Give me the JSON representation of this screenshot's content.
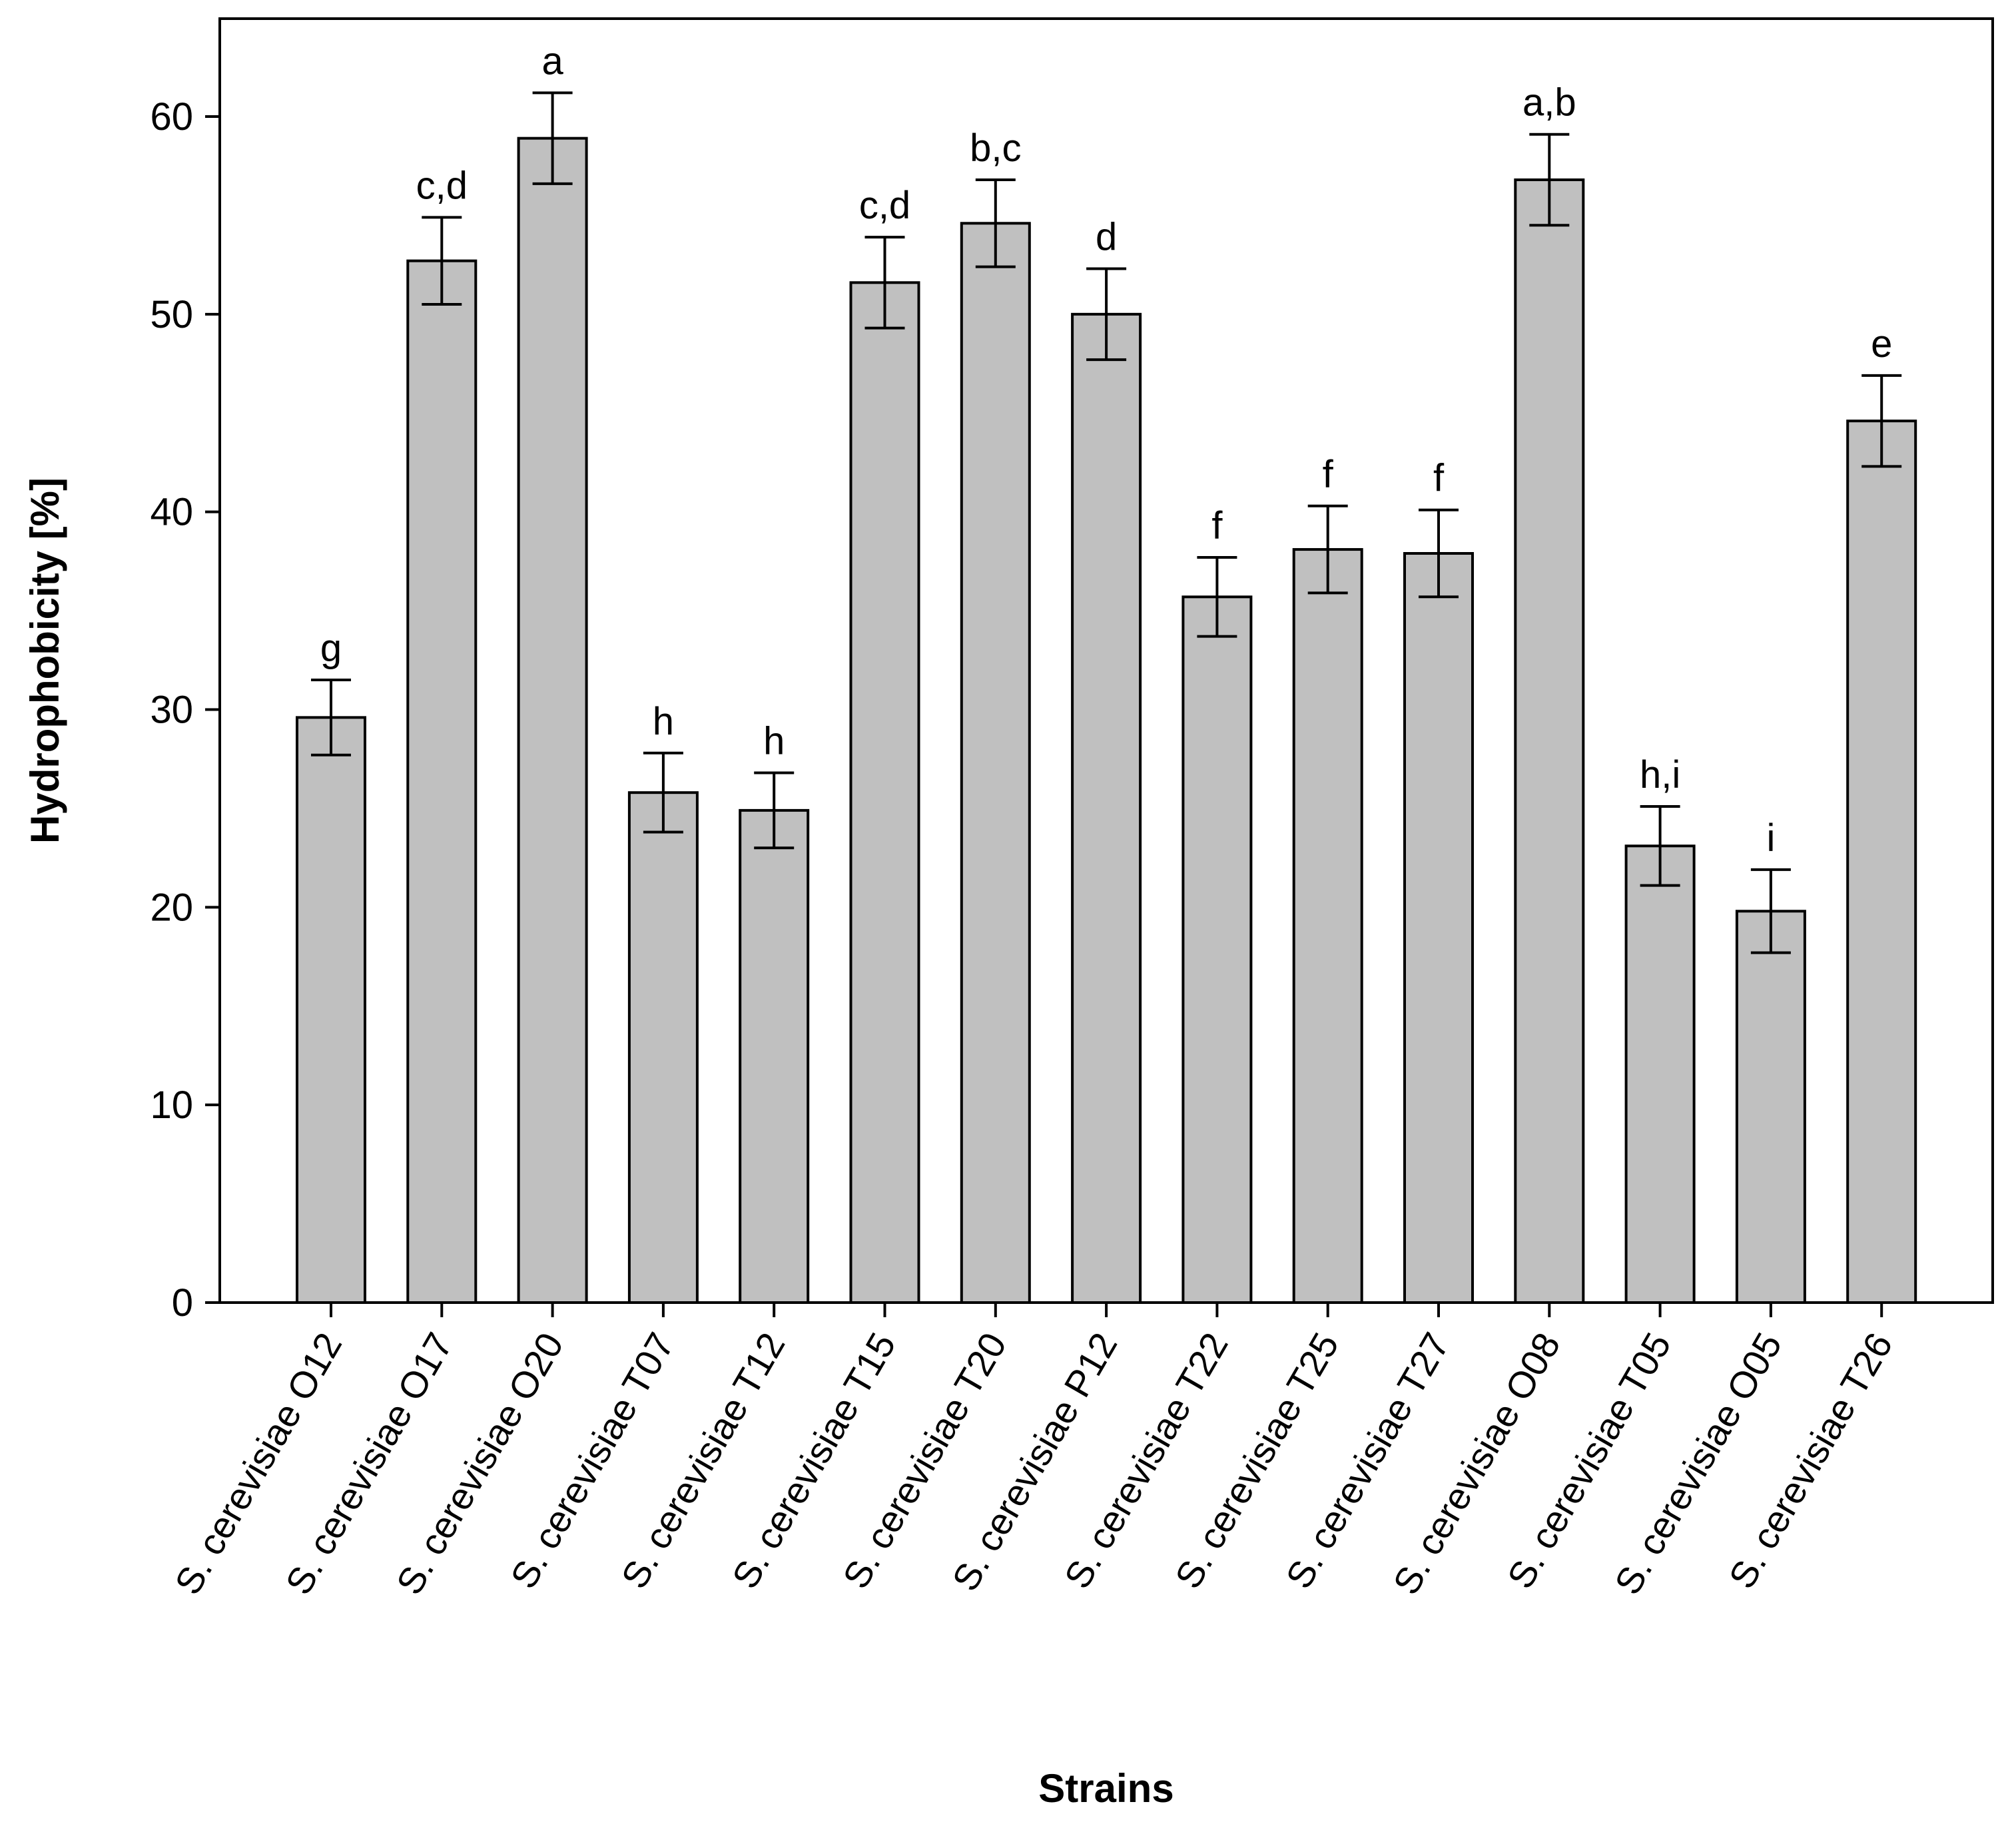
{
  "chart_data": {
    "type": "bar",
    "xlabel": "Strains",
    "ylabel": "Hydrophobicity [%]",
    "ylim": [
      0,
      65
    ],
    "yticks": [
      0,
      10,
      20,
      30,
      40,
      50,
      60
    ],
    "grid": false,
    "legend": "none",
    "categories": [
      "S. cerevisiae O12",
      "S. cerevisiae O17",
      "S. cerevisiae O20",
      "S. cerevisiae T07",
      "S. cerevisiae T12",
      "S. cerevisiae T15",
      "S. cerevisiae T20",
      "S. cerevisiae P12",
      "S. cerevisiae T22",
      "S. cerevisiae T25",
      "S. cerevisiae T27",
      "S. cerevisiae O08",
      "S. cerevisiae T05",
      "S. cerevisiae O05",
      "S. cerevisiae T26"
    ],
    "values": [
      29.6,
      52.7,
      58.9,
      25.8,
      24.9,
      51.6,
      54.6,
      50.0,
      35.7,
      38.1,
      37.9,
      56.8,
      23.1,
      19.8,
      44.6
    ],
    "errors": [
      1.9,
      2.2,
      2.3,
      2.0,
      1.9,
      2.3,
      2.2,
      2.3,
      2.0,
      2.2,
      2.2,
      2.3,
      2.0,
      2.1,
      2.3
    ],
    "significance": [
      "g",
      "c,d",
      "a",
      "h",
      "h",
      "c,d",
      "b,c",
      "d",
      "f",
      "f",
      "f",
      "a,b",
      "h,i",
      "i",
      "e"
    ],
    "colors": {
      "bar_fill": "#c0c0c0",
      "bar_stroke": "#000000"
    }
  }
}
